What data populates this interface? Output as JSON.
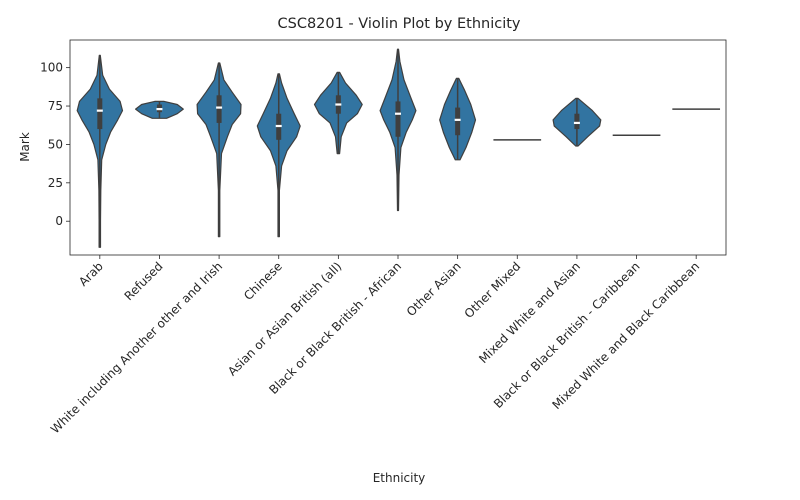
{
  "chart_data": {
    "type": "violin",
    "title": "CSC8201 - Violin Plot by Ethnicity",
    "xlabel": "Ethnicity",
    "ylabel": "Mark",
    "ylim": [
      -22,
      118
    ],
    "yticks": [
      0,
      25,
      50,
      75,
      100
    ],
    "grid": false,
    "color": "#3274a1",
    "edge_color": "#3f3f3f",
    "categories": [
      {
        "label": "Arab",
        "min": -17,
        "max": 108,
        "q1": 60,
        "median": 72,
        "q3": 80,
        "density": [
          [
            -17,
            0.03
          ],
          [
            0,
            0.03
          ],
          [
            20,
            0.04
          ],
          [
            40,
            0.08
          ],
          [
            50,
            0.25
          ],
          [
            58,
            0.45
          ],
          [
            66,
            0.75
          ],
          [
            72,
            0.95
          ],
          [
            78,
            0.85
          ],
          [
            86,
            0.4
          ],
          [
            95,
            0.12
          ],
          [
            108,
            0.02
          ]
        ]
      },
      {
        "label": "Refused",
        "min": 67,
        "max": 78,
        "q1": 71,
        "median": 73,
        "q3": 76,
        "density": [
          [
            67,
            0.3
          ],
          [
            70,
            0.75
          ],
          [
            73,
            1.0
          ],
          [
            76,
            0.75
          ],
          [
            78,
            0.2
          ]
        ]
      },
      {
        "label": "White including Another other and Irish",
        "min": -10,
        "max": 103,
        "q1": 64,
        "median": 74,
        "q3": 82,
        "density": [
          [
            -10,
            0.03
          ],
          [
            20,
            0.03
          ],
          [
            44,
            0.1
          ],
          [
            55,
            0.35
          ],
          [
            63,
            0.55
          ],
          [
            70,
            0.9
          ],
          [
            76,
            0.92
          ],
          [
            84,
            0.55
          ],
          [
            92,
            0.2
          ],
          [
            103,
            0.03
          ]
        ]
      },
      {
        "label": "Chinese",
        "min": -10,
        "max": 96,
        "q1": 53,
        "median": 62,
        "q3": 70,
        "density": [
          [
            -10,
            0.03
          ],
          [
            20,
            0.03
          ],
          [
            36,
            0.12
          ],
          [
            46,
            0.35
          ],
          [
            55,
            0.75
          ],
          [
            62,
            0.9
          ],
          [
            70,
            0.65
          ],
          [
            80,
            0.35
          ],
          [
            90,
            0.12
          ],
          [
            96,
            0.03
          ]
        ]
      },
      {
        "label": "Asian or Asian British (all)",
        "min": 44,
        "max": 97,
        "q1": 70,
        "median": 76,
        "q3": 82,
        "density": [
          [
            44,
            0.05
          ],
          [
            55,
            0.12
          ],
          [
            64,
            0.35
          ],
          [
            70,
            0.8
          ],
          [
            76,
            1.0
          ],
          [
            82,
            0.75
          ],
          [
            90,
            0.3
          ],
          [
            97,
            0.05
          ]
        ]
      },
      {
        "label": "Black or Black British - African",
        "min": 7,
        "max": 112,
        "q1": 55,
        "median": 70,
        "q3": 78,
        "density": [
          [
            7,
            0.02
          ],
          [
            30,
            0.04
          ],
          [
            48,
            0.12
          ],
          [
            58,
            0.35
          ],
          [
            66,
            0.6
          ],
          [
            72,
            0.75
          ],
          [
            80,
            0.55
          ],
          [
            92,
            0.25
          ],
          [
            104,
            0.08
          ],
          [
            112,
            0.02
          ]
        ]
      },
      {
        "label": "Other Asian",
        "min": 40,
        "max": 93,
        "q1": 56,
        "median": 66,
        "q3": 74,
        "density": [
          [
            40,
            0.1
          ],
          [
            48,
            0.35
          ],
          [
            58,
            0.6
          ],
          [
            66,
            0.75
          ],
          [
            76,
            0.55
          ],
          [
            85,
            0.3
          ],
          [
            93,
            0.05
          ]
        ]
      },
      {
        "label": "Other Mixed",
        "min": 53,
        "max": 53,
        "median": 53,
        "density": []
      },
      {
        "label": "Mixed White and Asian",
        "min": 49,
        "max": 80,
        "q1": 60,
        "median": 64,
        "q3": 70,
        "density": [
          [
            49,
            0.05
          ],
          [
            55,
            0.45
          ],
          [
            62,
            0.95
          ],
          [
            66,
            1.0
          ],
          [
            72,
            0.65
          ],
          [
            80,
            0.05
          ]
        ]
      },
      {
        "label": "Black or Black British - Caribbean",
        "min": 56,
        "max": 56,
        "median": 56,
        "density": []
      },
      {
        "label": "Mixed White and Black Caribbean",
        "min": 73,
        "max": 73,
        "median": 73,
        "density": []
      }
    ]
  }
}
